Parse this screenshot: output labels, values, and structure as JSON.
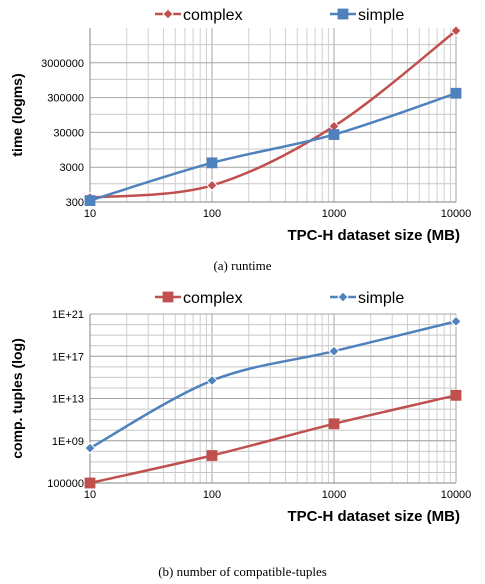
{
  "chart_data": [
    {
      "type": "line",
      "title": "",
      "xlabel": "TPC-H dataset size (MB)",
      "ylabel": "time (logms)",
      "x_scale": "log",
      "y_scale": "log",
      "x": [
        10,
        100,
        1000,
        10000
      ],
      "x_ticks": [
        "10",
        "100",
        "1000",
        "10000"
      ],
      "xlim": [
        10,
        10000
      ],
      "y_ticks": [
        {
          "value": 300,
          "label": "300"
        },
        {
          "value": 3000,
          "label": "3000"
        },
        {
          "value": 30000,
          "label": "30000"
        },
        {
          "value": 300000,
          "label": "300000"
        },
        {
          "value": 3000000,
          "label": "3000000"
        }
      ],
      "ylim": [
        300,
        30000000
      ],
      "grid": true,
      "legend_position": "top",
      "series": [
        {
          "name": "complex",
          "color": "#c0504d",
          "marker": "diamond",
          "values": [
            400,
            900,
            45000,
            25000000
          ]
        },
        {
          "name": "simple",
          "color": "#4f81bd",
          "marker": "square",
          "values": [
            330,
            4000,
            26000,
            400000
          ]
        }
      ],
      "caption": "(a) runtime"
    },
    {
      "type": "line",
      "title": "",
      "xlabel": "TPC-H dataset size (MB)",
      "ylabel": "comp. tuples (log)",
      "x_scale": "log",
      "y_scale": "log",
      "x": [
        10,
        100,
        1000,
        10000
      ],
      "x_ticks": [
        "10",
        "100",
        "1000",
        "10000"
      ],
      "xlim": [
        10,
        10000
      ],
      "y_ticks": [
        {
          "value": 100000,
          "label": "100000"
        },
        {
          "value": 1000000000.0,
          "label": "1E+09"
        },
        {
          "value": 10000000000000.0,
          "label": "1E+13"
        },
        {
          "value": 1e+17,
          "label": "1E+17"
        },
        {
          "value": 1e+21,
          "label": "1E+21"
        }
      ],
      "ylim": [
        100000,
        1e+21
      ],
      "grid": true,
      "legend_position": "top",
      "series": [
        {
          "name": "complex",
          "color": "#c0504d",
          "marker": "square",
          "values": [
            100000,
            40000000.0,
            40000000000.0,
            20000000000000.0
          ]
        },
        {
          "name": "simple",
          "color": "#4f81bd",
          "marker": "diamond",
          "values": [
            200000000.0,
            500000000000000.0,
            3e+17,
            2e+20
          ]
        }
      ],
      "caption": "(b) number of compatible-tuples"
    }
  ]
}
